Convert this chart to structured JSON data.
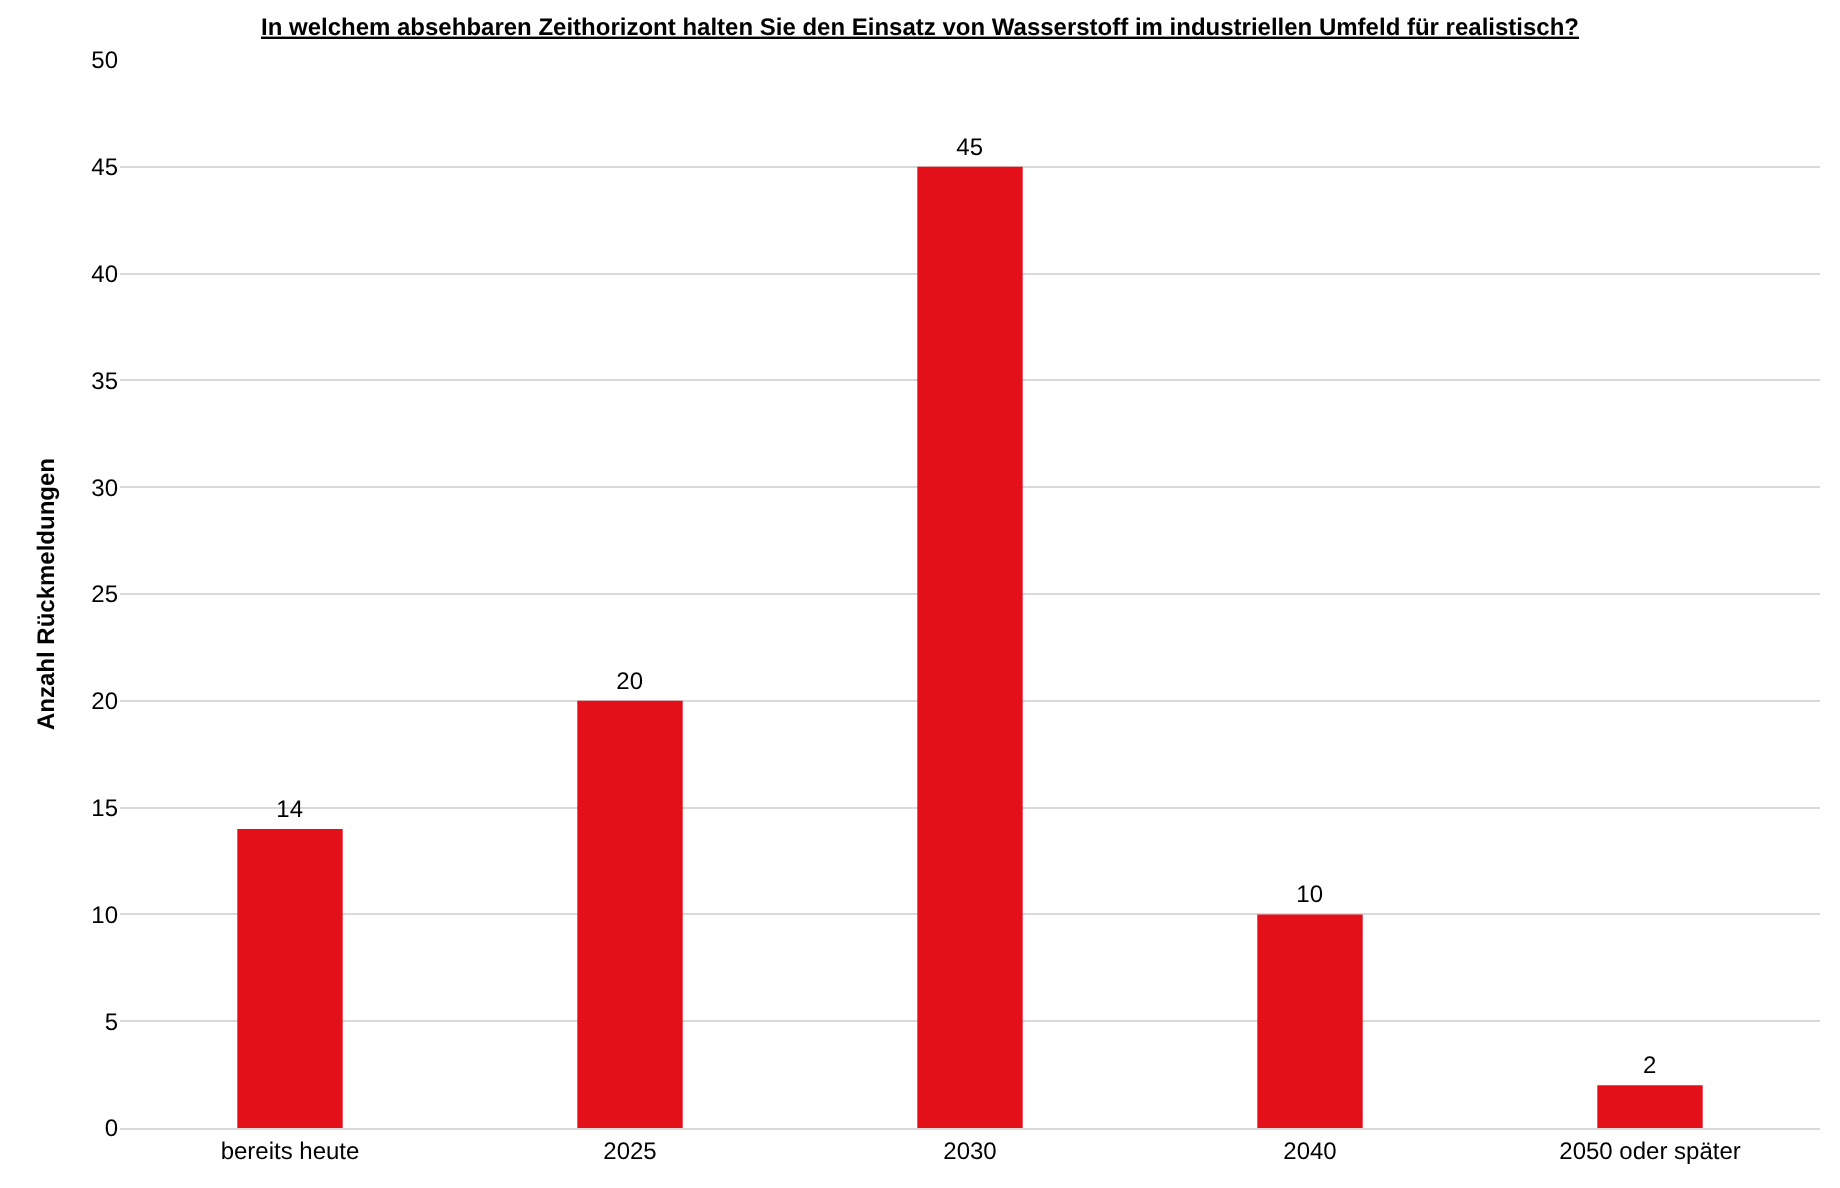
{
  "chart_data": {
    "type": "bar",
    "title": "In welchem absehbaren Zeithorizont halten Sie den Einsatz von Wasserstoff im industriellen Umfeld für realistisch?",
    "ylabel": "Anzahl Rückmeldungen",
    "categories": [
      "bereits heute",
      "2025",
      "2030",
      "2040",
      "2050 oder später"
    ],
    "values": [
      14,
      20,
      45,
      10,
      2
    ],
    "color": "#e3101a",
    "ylim": [
      0,
      50
    ],
    "yticks": [
      0,
      5,
      10,
      15,
      20,
      25,
      30,
      35,
      40,
      45,
      50
    ],
    "grid": "y",
    "data_labels": true,
    "legend": false
  }
}
